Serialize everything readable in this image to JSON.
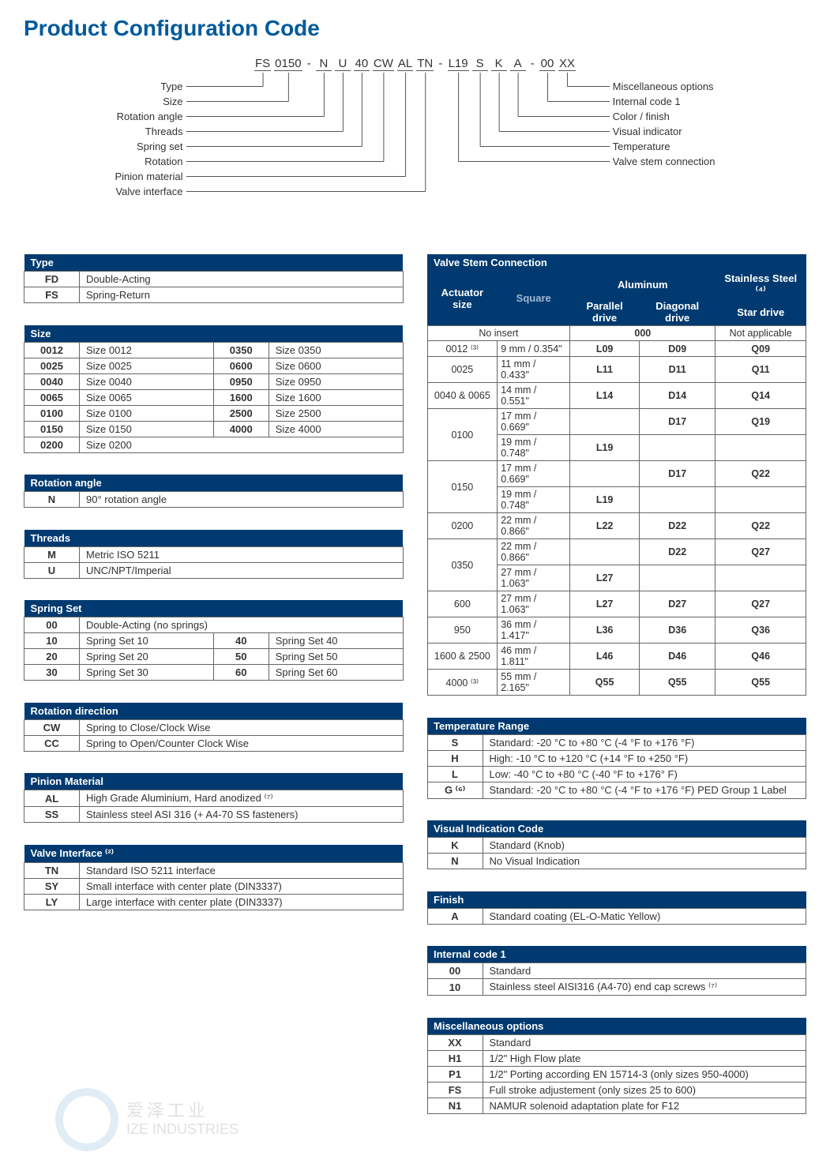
{
  "title": "Product Configuration Code",
  "code_segments": [
    "FS",
    "0150",
    "-",
    "N",
    "U",
    "40",
    "CW",
    "AL",
    "TN",
    "-",
    "L19",
    "S",
    "K",
    "A",
    "-",
    "00",
    "XX"
  ],
  "left_labels": [
    "Type",
    "Size",
    "Rotation angle",
    "Threads",
    "Spring set",
    "Rotation",
    "Pinion material",
    "Valve interface"
  ],
  "right_labels": [
    "Miscellaneous options",
    "Internal code 1",
    "Color / finish",
    "Visual indicator",
    "Temperature",
    "Valve stem connection"
  ],
  "colors": {
    "header_bg": "#003a70",
    "title": "#005a9c",
    "sub_text": "#9db8d4"
  },
  "tables_left": [
    {
      "title": "Type",
      "cols": 2,
      "rows": [
        [
          "FD",
          "Double-Acting"
        ],
        [
          "FS",
          "Spring-Return"
        ]
      ]
    },
    {
      "title": "Size",
      "cols": 4,
      "rows": [
        [
          "0012",
          "Size 0012",
          "0350",
          "Size 0350"
        ],
        [
          "0025",
          "Size 0025",
          "0600",
          "Size 0600"
        ],
        [
          "0040",
          "Size 0040",
          "0950",
          "Size 0950"
        ],
        [
          "0065",
          "Size 0065",
          "1600",
          "Size 1600"
        ],
        [
          "0100",
          "Size 0100",
          "2500",
          "Size 2500"
        ],
        [
          "0150",
          "Size 0150",
          "4000",
          "Size 4000"
        ],
        [
          "0200",
          "Size 0200",
          "",
          ""
        ]
      ]
    },
    {
      "title": "Rotation angle",
      "cols": 2,
      "rows": [
        [
          "N",
          "90° rotation angle"
        ]
      ]
    },
    {
      "title": "Threads",
      "cols": 2,
      "rows": [
        [
          "M",
          "Metric ISO 5211"
        ],
        [
          "U",
          "UNC/NPT/Imperial"
        ]
      ]
    },
    {
      "title": "Spring Set",
      "cols": 4,
      "rows": [
        [
          "00",
          "Double-Acting (no springs)",
          "",
          ""
        ],
        [
          "10",
          "Spring Set 10",
          "40",
          "Spring Set 40"
        ],
        [
          "20",
          "Spring Set 20",
          "50",
          "Spring Set 50"
        ],
        [
          "30",
          "Spring Set 30",
          "60",
          "Spring Set 60"
        ]
      ]
    },
    {
      "title": "Rotation direction",
      "cols": 2,
      "rows": [
        [
          "CW",
          "Spring to Close/Clock Wise"
        ],
        [
          "CC",
          "Spring to Open/Counter Clock Wise"
        ]
      ]
    },
    {
      "title": "Pinion Material",
      "cols": 2,
      "rows": [
        [
          "AL",
          "High Grade Aluminium, Hard anodized ⁽⁷⁾"
        ],
        [
          "SS",
          "Stainless steel ASI 316 (+ A4-70 SS fasteners)"
        ]
      ]
    },
    {
      "title": "Valve Interface ⁽²⁾",
      "cols": 2,
      "rows": [
        [
          "TN",
          "Standard ISO 5211 interface"
        ],
        [
          "SY",
          "Small interface with center plate (DIN3337)"
        ],
        [
          "LY",
          "Large interface with center plate (DIN3337)"
        ]
      ]
    }
  ],
  "vsc": {
    "title": "Valve Stem Connection",
    "head": {
      "actuator": "Actuator size",
      "square": "Square",
      "aluminum": "Aluminum",
      "ss": "Stainless Steel ⁽⁴⁾",
      "parallel": "Parallel drive",
      "diagonal": "Diagonal drive",
      "star": "Star drive"
    },
    "noinsert_label": "No insert",
    "noinsert_code": "000",
    "noinsert_na": "Not applicable",
    "rows": [
      {
        "size": "0012 ⁽³⁾",
        "sq": "9 mm / 0.354\"",
        "p": "L09",
        "d": "D09",
        "s": "Q09"
      },
      {
        "size": "0025",
        "sq": "11 mm / 0.433\"",
        "p": "L11",
        "d": "D11",
        "s": "Q11"
      },
      {
        "size": "0040 & 0065",
        "sq": "14 mm / 0.551\"",
        "p": "L14",
        "d": "D14",
        "s": "Q14"
      },
      {
        "size": "0100",
        "sq": "17 mm / 0.669\"",
        "p": "",
        "d": "D17",
        "s": "Q19",
        "rs": 2
      },
      {
        "sq": "19 mm / 0.748\"",
        "p": "L19",
        "d": "",
        "s": ""
      },
      {
        "size": "0150",
        "sq": "17 mm / 0.669\"",
        "p": "",
        "d": "D17",
        "s": "Q22",
        "rs": 2
      },
      {
        "sq": "19 mm / 0.748\"",
        "p": "L19",
        "d": "",
        "s": ""
      },
      {
        "size": "0200",
        "sq": "22 mm / 0.866\"",
        "p": "L22",
        "d": "D22",
        "s": "Q22"
      },
      {
        "size": "0350",
        "sq": "22 mm / 0.866\"",
        "p": "",
        "d": "D22",
        "s": "Q27",
        "rs": 2
      },
      {
        "sq": "27 mm / 1.063\"",
        "p": "L27",
        "d": "",
        "s": ""
      },
      {
        "size": "600",
        "sq": "27 mm / 1.063\"",
        "p": "L27",
        "d": "D27",
        "s": "Q27"
      },
      {
        "size": "950",
        "sq": "36 mm / 1.417\"",
        "p": "L36",
        "d": "D36",
        "s": "Q36"
      },
      {
        "size": "1600 & 2500",
        "sq": "46 mm / 1.811\"",
        "p": "L46",
        "d": "D46",
        "s": "Q46"
      },
      {
        "size": "4000 ⁽³⁾",
        "sq": "55 mm / 2.165\"",
        "p": "Q55",
        "d": "Q55",
        "s": "Q55"
      }
    ]
  },
  "tables_right": [
    {
      "title": "Temperature Range",
      "cols": 2,
      "rows": [
        [
          "S",
          "Standard:  -20 °C to +80 °C (-4 °F to +176 °F)"
        ],
        [
          "H",
          "High: -10 °C to +120 °C (+14 °F to +250 °F)"
        ],
        [
          "L",
          "Low: -40 °C to +80 °C (-40 °F to +176° F)"
        ],
        [
          "G ⁽⁶⁾",
          "Standard: -20 °C to +80 °C (-4 °F to +176 °F) PED Group 1 Label"
        ]
      ]
    },
    {
      "title": "Visual Indication Code",
      "cols": 2,
      "rows": [
        [
          "K",
          "Standard (Knob)"
        ],
        [
          "N",
          "No Visual Indication"
        ]
      ]
    },
    {
      "title": "Finish",
      "cols": 2,
      "rows": [
        [
          "A",
          "Standard coating (EL-O-Matic Yellow)"
        ]
      ]
    },
    {
      "title": "Internal code 1",
      "cols": 2,
      "rows": [
        [
          "00",
          "Standard"
        ],
        [
          "10",
          "Stainless steel AISI316 (A4-70) end cap screws ⁽⁷⁾"
        ]
      ]
    },
    {
      "title": "Miscellaneous options",
      "cols": 2,
      "rows": [
        [
          "XX",
          "Standard"
        ],
        [
          "H1",
          "1/2\" High Flow plate"
        ],
        [
          "P1",
          "1/2\" Porting according EN 15714-3 (only sizes 950-4000)"
        ],
        [
          "FS",
          "Full stroke adjustement (only sizes 25 to 600)"
        ],
        [
          "N1",
          "NAMUR solenoid adaptation plate for F12"
        ]
      ]
    }
  ],
  "watermark": {
    "cn": "爱泽工业",
    "en": "IZE INDUSTRIES"
  }
}
